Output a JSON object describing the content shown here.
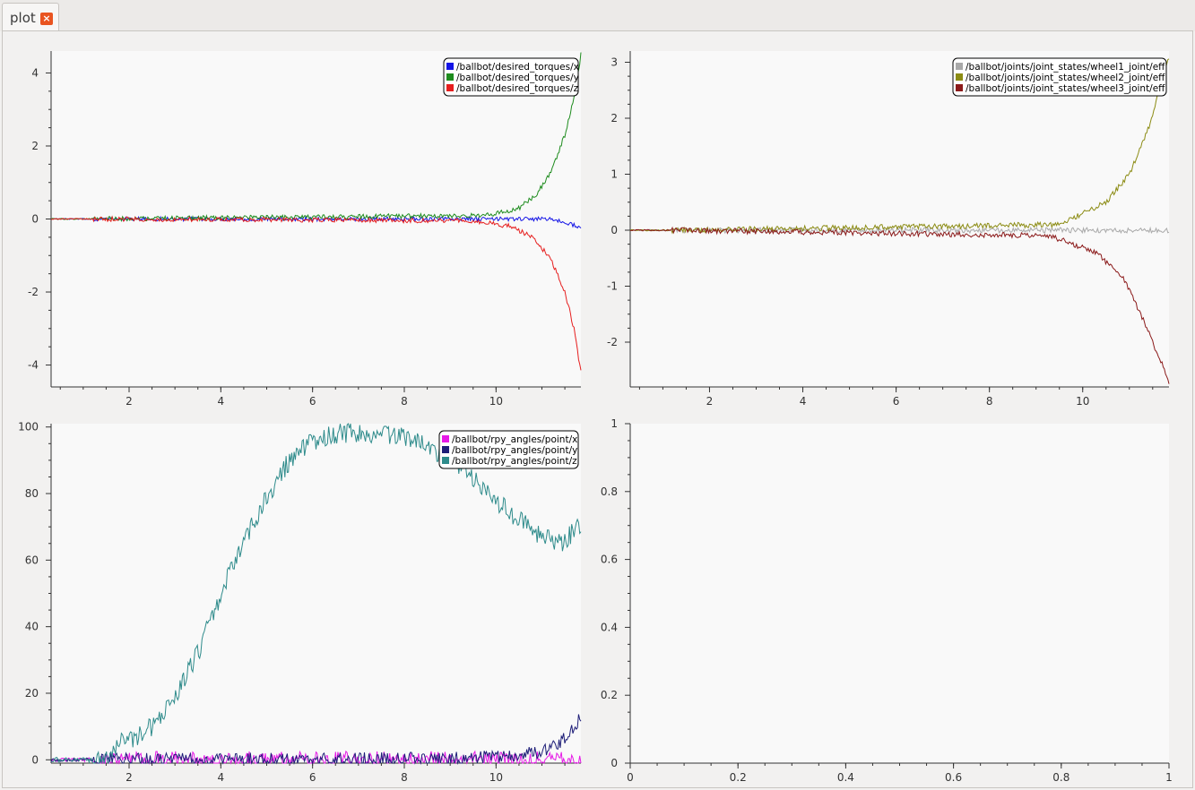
{
  "tab": {
    "title": "plot",
    "close_icon": "close-icon"
  },
  "colors": {
    "background": "#f9f9f9",
    "axis": "#333333"
  },
  "chart_data": [
    {
      "type": "line",
      "xlim": [
        0.3,
        11.85
      ],
      "ylim": [
        -4.6,
        4.6
      ],
      "xticks": [
        2,
        4,
        6,
        8,
        10
      ],
      "yticks": [
        -4,
        -2,
        0,
        2,
        4
      ],
      "legend": "top-right",
      "series": [
        {
          "name": "/ballbot/desired_torques/x",
          "color": "#1414e6",
          "noise": 0.06,
          "points": [
            [
              0.3,
              0
            ],
            [
              1.3,
              0
            ],
            [
              11.2,
              0
            ],
            [
              11.5,
              -0.1
            ],
            [
              11.8,
              -0.2
            ]
          ]
        },
        {
          "name": "/ballbot/desired_torques/y",
          "color": "#1e8c1e",
          "noise": 0.07,
          "points": [
            [
              0.3,
              0
            ],
            [
              1.3,
              0
            ],
            [
              9.8,
              0.1
            ],
            [
              10.5,
              0.3
            ],
            [
              10.9,
              0.7
            ],
            [
              11.2,
              1.3
            ],
            [
              11.5,
              2.3
            ],
            [
              11.7,
              3.3
            ],
            [
              11.85,
              4.5
            ]
          ]
        },
        {
          "name": "/ballbot/desired_torques/z",
          "color": "#e61e1e",
          "noise": 0.07,
          "points": [
            [
              0.3,
              0
            ],
            [
              1.3,
              0
            ],
            [
              9.5,
              -0.05
            ],
            [
              10.3,
              -0.2
            ],
            [
              10.8,
              -0.5
            ],
            [
              11.2,
              -1.1
            ],
            [
              11.5,
              -2
            ],
            [
              11.7,
              -3
            ],
            [
              11.85,
              -4.2
            ]
          ]
        }
      ]
    },
    {
      "type": "line",
      "xlim": [
        0.3,
        11.85
      ],
      "ylim": [
        -2.8,
        3.2
      ],
      "xticks": [
        2,
        4,
        6,
        8,
        10
      ],
      "yticks": [
        -2,
        -1,
        0,
        1,
        2,
        3
      ],
      "legend": "top-right",
      "series": [
        {
          "name": "/ballbot/joints/joint_states/wheel1_joint/eff",
          "color": "#a9a9a9",
          "noise": 0.08,
          "points": [
            [
              0.3,
              0
            ],
            [
              1.3,
              0
            ],
            [
              11.85,
              0
            ]
          ]
        },
        {
          "name": "/ballbot/joints/joint_states/wheel2_joint/eff",
          "color": "#8c8c14",
          "noise": 0.08,
          "points": [
            [
              0.3,
              0
            ],
            [
              1.3,
              0
            ],
            [
              9.5,
              0.1
            ],
            [
              10.5,
              0.5
            ],
            [
              11,
              1
            ],
            [
              11.4,
              1.8
            ],
            [
              11.85,
              3.1
            ]
          ]
        },
        {
          "name": "/ballbot/joints/joint_states/wheel3_joint/eff",
          "color": "#8b1a1a",
          "noise": 0.08,
          "points": [
            [
              0.3,
              0
            ],
            [
              1.3,
              0
            ],
            [
              9.3,
              -0.1
            ],
            [
              10.3,
              -0.4
            ],
            [
              10.9,
              -0.9
            ],
            [
              11.3,
              -1.6
            ],
            [
              11.6,
              -2.2
            ],
            [
              11.85,
              -2.7
            ]
          ]
        }
      ]
    },
    {
      "type": "line",
      "xlim": [
        0.3,
        11.85
      ],
      "ylim": [
        -1,
        101
      ],
      "xticks": [
        2,
        4,
        6,
        8,
        10
      ],
      "yticks": [
        0,
        20,
        40,
        60,
        80,
        100
      ],
      "legend": "top-right",
      "series": [
        {
          "name": "/ballbot/rpy_angles/point/x",
          "color": "#e619e6",
          "noise": 0.25,
          "points": [
            [
              0.3,
              0
            ],
            [
              11.85,
              0
            ]
          ]
        },
        {
          "name": "/ballbot/rpy_angles/point/y",
          "color": "#1e1e78",
          "noise": 0.2,
          "points": [
            [
              0.3,
              0
            ],
            [
              9,
              0.3
            ],
            [
              10,
              0.8
            ],
            [
              10.8,
              2
            ],
            [
              11.3,
              4
            ],
            [
              11.6,
              8
            ],
            [
              11.85,
              13
            ]
          ]
        },
        {
          "name": "/ballbot/rpy_angles/point/z",
          "color": "#2e8b8b",
          "noise": 0.3,
          "points": [
            [
              0.3,
              0
            ],
            [
              1.5,
              0
            ],
            [
              1.8,
              5
            ],
            [
              2.3,
              8
            ],
            [
              2.6,
              11
            ],
            [
              3,
              19
            ],
            [
              3.5,
              32
            ],
            [
              4,
              50
            ],
            [
              4.5,
              66
            ],
            [
              5,
              79
            ],
            [
              5.5,
              90
            ],
            [
              6,
              96
            ],
            [
              6.5,
              98
            ],
            [
              7,
              98.5
            ],
            [
              7.5,
              98
            ],
            [
              8,
              97.5
            ],
            [
              8.5,
              94
            ],
            [
              9,
              90
            ],
            [
              9.5,
              84
            ],
            [
              10,
              78
            ],
            [
              10.5,
              72
            ],
            [
              11,
              67
            ],
            [
              11.3,
              65
            ],
            [
              11.5,
              66
            ],
            [
              11.85,
              71
            ]
          ]
        }
      ]
    },
    {
      "type": "line",
      "xlim": [
        0,
        1
      ],
      "ylim": [
        0,
        1
      ],
      "xticks": [
        0,
        0.2,
        0.4,
        0.6,
        0.8,
        1
      ],
      "yticks": [
        0,
        0.2,
        0.4,
        0.6,
        0.8,
        1
      ],
      "series": []
    }
  ]
}
